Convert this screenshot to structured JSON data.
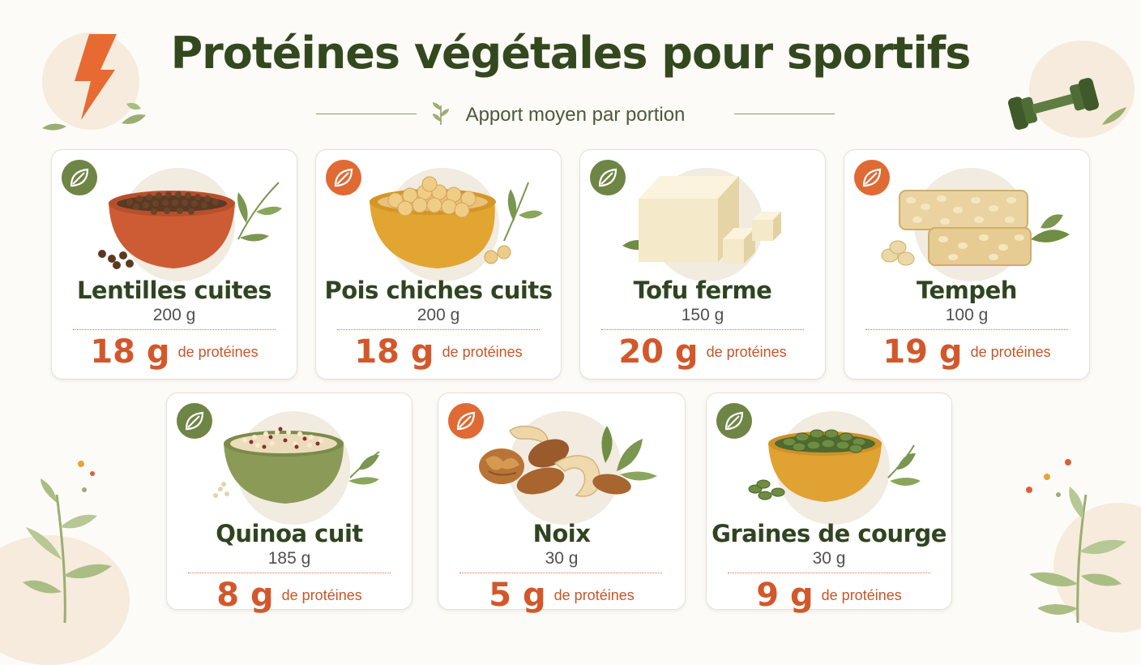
{
  "header": {
    "title": "Protéines végétales pour sportifs",
    "subtitle": "Apport moyen par portion"
  },
  "colors": {
    "title": "#33481f",
    "accent_orange": "#e06a33",
    "accent_green": "#6e8545",
    "protein_value": "#d2582b",
    "background": "#fdfbf7"
  },
  "icons": {
    "header_left": "lightning-icon",
    "header_right": "dumbbell-icon",
    "badge": "leaf-icon"
  },
  "cards": [
    {
      "name": "Lentilles cuites",
      "portion": "200 g",
      "protein": "18 g",
      "protein_label": "de protéines",
      "badge_color": "green",
      "illustration": "lentils-bowl"
    },
    {
      "name": "Pois chiches cuits",
      "portion": "200 g",
      "protein": "18 g",
      "protein_label": "de protéines",
      "badge_color": "orange",
      "illustration": "chickpeas-bowl"
    },
    {
      "name": "Tofu ferme",
      "portion": "150 g",
      "protein": "20 g",
      "protein_label": "de protéines",
      "badge_color": "green",
      "illustration": "tofu-block"
    },
    {
      "name": "Tempeh",
      "portion": "100 g",
      "protein": "19 g",
      "protein_label": "de protéines",
      "badge_color": "orange",
      "illustration": "tempeh-slices"
    },
    {
      "name": "Quinoa cuit",
      "portion": "185 g",
      "protein": "8 g",
      "protein_label": "de protéines",
      "badge_color": "green",
      "illustration": "quinoa-bowl"
    },
    {
      "name": "Noix",
      "portion": "30 g",
      "protein": "5 g",
      "protein_label": "de protéines",
      "badge_color": "orange",
      "illustration": "mixed-nuts"
    },
    {
      "name": "Graines de courge",
      "portion": "30 g",
      "protein": "9 g",
      "protein_label": "de protéines",
      "badge_color": "green",
      "illustration": "pumpkin-seeds-bowl"
    }
  ]
}
